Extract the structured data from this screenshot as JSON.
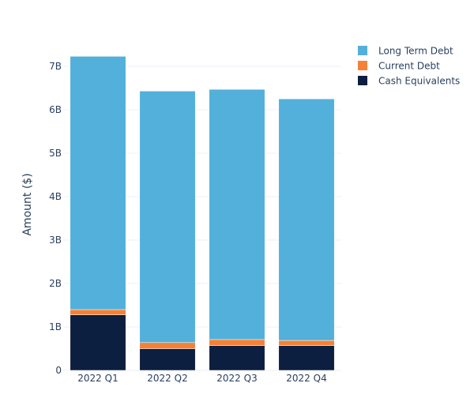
{
  "chart_data": {
    "type": "bar",
    "stacked": true,
    "title": "",
    "xlabel": "",
    "ylabel": "Amount ($)",
    "ylim": [
      0,
      7000000000
    ],
    "yticks": [
      0,
      1000000000,
      2000000000,
      3000000000,
      4000000000,
      5000000000,
      6000000000,
      7000000000
    ],
    "ytick_labels": [
      "0",
      "1B",
      "2B",
      "3B",
      "4B",
      "5B",
      "6B",
      "7B"
    ],
    "categories": [
      "2022 Q1",
      "2022 Q2",
      "2022 Q3",
      "2022 Q4"
    ],
    "grid": true,
    "legend_position": "top-right",
    "series": [
      {
        "name": "Cash Equivalents",
        "color": "#0d1f40",
        "values": [
          1280000000,
          500000000,
          570000000,
          570000000
        ]
      },
      {
        "name": "Current Debt",
        "color": "#f58136",
        "values": [
          120000000,
          140000000,
          140000000,
          120000000
        ]
      },
      {
        "name": "Long Term Debt",
        "color": "#52b0da",
        "values": [
          5830000000,
          5790000000,
          5760000000,
          5560000000
        ]
      }
    ],
    "legend_order": [
      "Long Term Debt",
      "Current Debt",
      "Cash Equivalents"
    ]
  }
}
